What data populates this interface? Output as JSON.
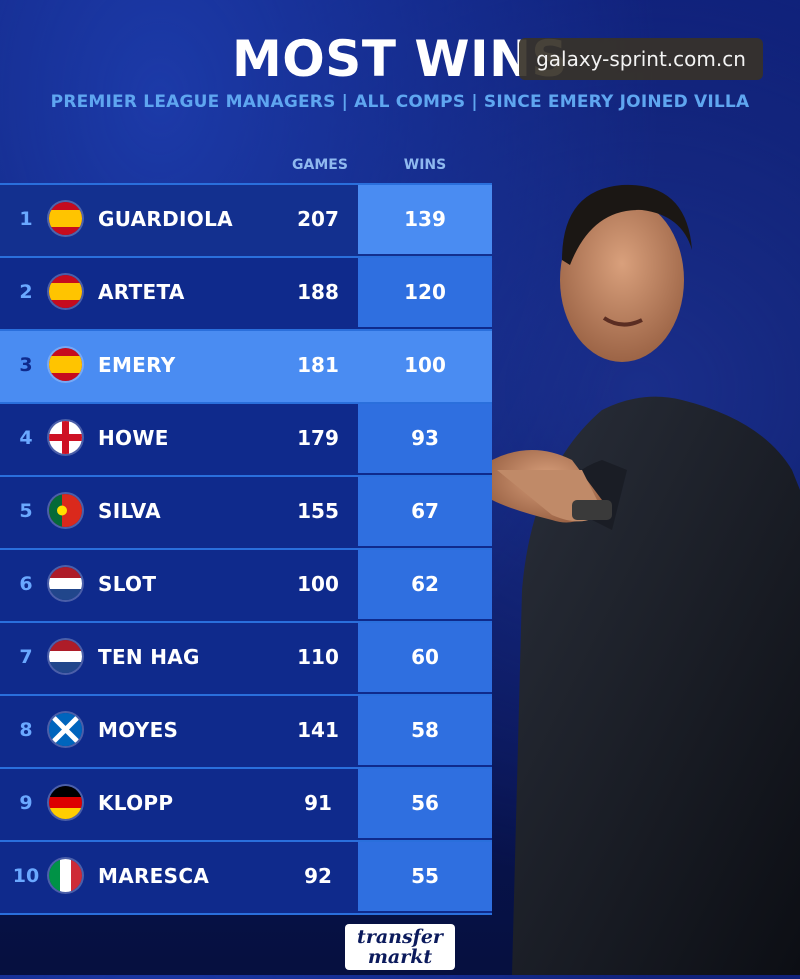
{
  "title": "MOST WINS",
  "subtitle": "PREMIER LEAGUE MANAGERS | ALL COMPS | SINCE EMERY JOINED VILLA",
  "watermark": "galaxy-sprint.com.cn",
  "columns": {
    "games": "GAMES",
    "wins": "WINS"
  },
  "rows": [
    {
      "rank": "1",
      "name": "GUARDIOLA",
      "flag": "spain-flag-icon",
      "games": "207",
      "wins": "139"
    },
    {
      "rank": "2",
      "name": "ARTETA",
      "flag": "spain-flag-icon",
      "games": "188",
      "wins": "120"
    },
    {
      "rank": "3",
      "name": "EMERY",
      "flag": "spain-flag-icon",
      "games": "181",
      "wins": "100"
    },
    {
      "rank": "4",
      "name": "HOWE",
      "flag": "england-flag-icon",
      "games": "179",
      "wins": "93"
    },
    {
      "rank": "5",
      "name": "SILVA",
      "flag": "portugal-flag-icon",
      "games": "155",
      "wins": "67"
    },
    {
      "rank": "6",
      "name": "SLOT",
      "flag": "netherlands-flag-icon",
      "games": "100",
      "wins": "62"
    },
    {
      "rank": "7",
      "name": "TEN HAG",
      "flag": "netherlands-flag-icon",
      "games": "110",
      "wins": "60"
    },
    {
      "rank": "8",
      "name": "MOYES",
      "flag": "scotland-flag-icon",
      "games": "141",
      "wins": "58"
    },
    {
      "rank": "9",
      "name": "KLOPP",
      "flag": "germany-flag-icon",
      "games": "91",
      "wins": "56"
    },
    {
      "rank": "10",
      "name": "MARESCA",
      "flag": "italy-flag-icon",
      "games": "92",
      "wins": "55"
    }
  ],
  "logo": {
    "line1": "transfer",
    "line2": "markt"
  },
  "colors": {
    "highlight_row": "#4a8cf2",
    "wins_column": "#2f6fe0",
    "accent_text": "#5fa6f0"
  }
}
